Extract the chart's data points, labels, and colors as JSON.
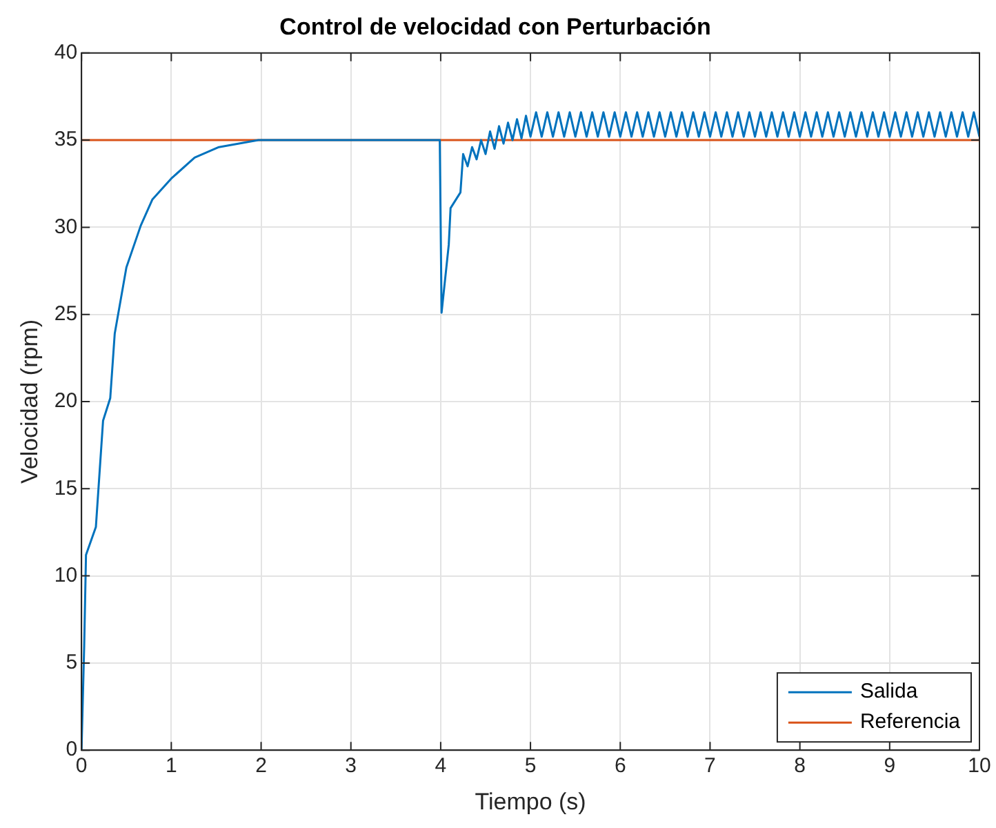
{
  "chart_data": {
    "type": "line",
    "title": "Control de velocidad con Perturbación",
    "xlabel": "Tiempo (s)",
    "ylabel": "Velocidad (rpm)",
    "xlim": [
      0,
      10
    ],
    "xticks": [
      0,
      1,
      2,
      3,
      4,
      5,
      6,
      7,
      8,
      9,
      10
    ],
    "ylim": [
      0,
      40
    ],
    "yticks": [
      0,
      5,
      10,
      15,
      20,
      25,
      30,
      35,
      40
    ],
    "grid": true,
    "legend": "bottom right",
    "series": [
      {
        "name": "Salida",
        "color": "#0072bd",
        "x": [
          0,
          0.03,
          0.05,
          0.16,
          0.24,
          0.32,
          0.37,
          0.5,
          0.66,
          0.79,
          1,
          1.26,
          1.53,
          1.97,
          3,
          3.99,
          4.01,
          4.09,
          4.11,
          4.22,
          4.25,
          4.3,
          4.35,
          4.4,
          4.45,
          4.5,
          4.55,
          4.6,
          4.65,
          4.7,
          4.75,
          4.8,
          4.85,
          4.9,
          4.95,
          5,
          5.0625,
          5.125,
          5.1875,
          5.25,
          5.3125,
          5.375,
          5.4375,
          5.5,
          5.5625,
          5.625,
          5.6875,
          5.75,
          5.8125,
          5.875,
          5.9375,
          6,
          6.0625,
          6.125,
          6.1875,
          6.25,
          6.3125,
          6.375,
          6.4375,
          6.5,
          6.5625,
          6.625,
          6.6875,
          6.75,
          6.8125,
          6.875,
          6.9375,
          7,
          7.0625,
          7.125,
          7.1875,
          7.25,
          7.3125,
          7.375,
          7.4375,
          7.5,
          7.5625,
          7.625,
          7.6875,
          7.75,
          7.8125,
          7.875,
          7.9375,
          8,
          8.0625,
          8.125,
          8.1875,
          8.25,
          8.3125,
          8.375,
          8.4375,
          8.5,
          8.5625,
          8.625,
          8.6875,
          8.75,
          8.8125,
          8.875,
          8.9375,
          9,
          9.0625,
          9.125,
          9.1875,
          9.25,
          9.3125,
          9.375,
          9.4375,
          9.5,
          9.5625,
          9.625,
          9.6875,
          9.75,
          9.8125,
          9.875,
          9.9375,
          10
        ],
        "values": [
          0,
          6,
          11.2,
          12.8,
          18.9,
          20.2,
          23.9,
          27.7,
          30.1,
          31.6,
          32.8,
          34,
          34.6,
          35,
          35,
          35,
          25.1,
          29,
          31.1,
          32,
          34.2,
          33.5,
          34.6,
          33.9,
          35,
          34.2,
          35.5,
          34.5,
          35.8,
          34.8,
          36,
          35,
          36.2,
          35.1,
          36.4,
          35.2,
          36.6,
          35.2,
          36.6,
          35.2,
          36.6,
          35.2,
          36.6,
          35.2,
          36.6,
          35.2,
          36.6,
          35.2,
          36.6,
          35.2,
          36.6,
          35.2,
          36.6,
          35.2,
          36.6,
          35.2,
          36.6,
          35.2,
          36.6,
          35.2,
          36.6,
          35.2,
          36.6,
          35.2,
          36.6,
          35.2,
          36.6,
          35.2,
          36.6,
          35.2,
          36.6,
          35.2,
          36.6,
          35.2,
          36.6,
          35.2,
          36.6,
          35.2,
          36.6,
          35.2,
          36.6,
          35.2,
          36.6,
          35.2,
          36.6,
          35.2,
          36.6,
          35.2,
          36.6,
          35.2,
          36.6,
          35.2,
          36.6,
          35.2,
          36.6,
          35.2,
          36.6,
          35.2,
          36.6,
          35.2,
          36.6,
          35.2,
          36.6,
          35.2,
          36.6,
          35.2,
          36.6,
          35.2,
          36.6,
          35.2,
          36.6,
          35.2,
          36.6,
          35.2,
          36.6,
          35.2
        ]
      },
      {
        "name": "Referencia",
        "color": "#d95319",
        "x": [
          0,
          10
        ],
        "values": [
          35,
          35
        ]
      }
    ]
  }
}
